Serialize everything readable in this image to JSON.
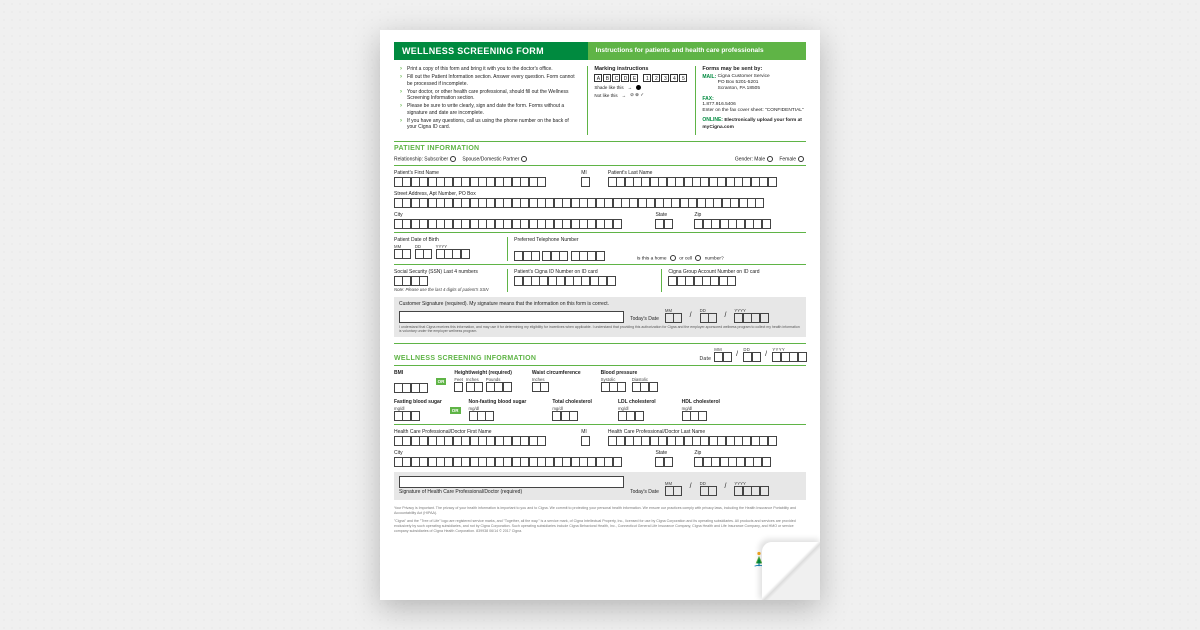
{
  "colors": {
    "green_dark": "#008a3f",
    "green_light": "#5fb446",
    "grey_bg": "#e7e7e7"
  },
  "header": {
    "title": "WELLNESS SCREENING FORM",
    "subtitle": "Instructions for patients and health care professionals"
  },
  "instructions": [
    "Print a copy of this form and bring it with you to the doctor's office.",
    "Fill out the Patient Information section. Answer every question. Form cannot be processed if incomplete.",
    "Your doctor, or other health care professional, should fill out the Wellness Screening Information section.",
    "Please be sure to write clearly, sign and date the form. Forms without a signature and date are incomplete.",
    "If you have any questions, call us using the phone number on the back of your Cigna ID card."
  ],
  "marking": {
    "title": "Marking instructions",
    "letters": [
      "A",
      "B",
      "C",
      "D",
      "E"
    ],
    "numbers": [
      "1",
      "2",
      "3",
      "4",
      "5"
    ],
    "shade_ok": "Shade like this",
    "shade_bad": "Not like this"
  },
  "send": {
    "title": "Forms may be sent by:",
    "mail_label": "MAIL:",
    "mail_text": "Cigna Customer Service\nPO Box 5201-5201\nScranton, PA 18505",
    "fax_label": "FAX:",
    "fax_text": "1.877.916.5406\nEnter on the fax cover sheet: \"CONFIDENTIAL\"",
    "online_label": "ONLINE:",
    "online_text": "Electronically upload your form at myCigna.com"
  },
  "patient": {
    "section": "PATIENT INFORMATION",
    "relationship": "Relationship:",
    "subscriber": "Subscriber",
    "spouse": "Spouse/Domestic Partner",
    "gender": "Gender:",
    "male": "Male",
    "female": "Female",
    "first_name": "Patient's First Name",
    "mi": "MI",
    "last_name": "Patient's Last Name",
    "street": "Street Address, Apt Number, PO Box",
    "city": "City",
    "state": "State",
    "zip": "Zip",
    "dob": "Patient Date of Birth",
    "mm": "MM",
    "dd": "DD",
    "yyyy": "YYYY",
    "phone": "Preferred Telephone Number",
    "phone_q": "Is this a home       or cell       number?",
    "ssn": "Social Security (SSN) Last 4 numbers",
    "ssn_note": "Note: Please use the last 4 digits of patient's SSN",
    "cigna_id": "Patient's Cigna ID Number on ID card",
    "group": "Cigna Group Account Number on ID card",
    "sig_label": "Customer Signature (required). My signature means that the information on this form is correct.",
    "today": "Today's Date",
    "sig_disclaimer": "I understand that Cigna receives this information, and may use it for determining my eligibility for incentives when applicable. I understand that providing this authorization for Cigna and the employer-sponsored wellness program to collect my health information is voluntary under the employer wellness program."
  },
  "wellness": {
    "section": "WELLNESS SCREENING INFORMATION",
    "date": "Date",
    "bmi": "BMI",
    "hw": "Height/weight (required)",
    "feet": "Feet",
    "inches": "Inches",
    "pounds": "Pounds",
    "waist": "Waist circumference",
    "waist_u": "Inches",
    "bp": "Blood pressure",
    "sys": "Systolic",
    "dia": "Diastolic",
    "fbs": "Fasting blood sugar",
    "nfbs": "Non-fasting blood sugar",
    "tc": "Total cholesterol",
    "ldl": "LDL cholesterol",
    "hdl": "HDL cholesterol",
    "mgdl": "mg/dl",
    "hcp_first": "Health Care Professional/Doctor First Name",
    "hcp_last": "Health Care Professional/Doctor Last Name",
    "hcp_sig": "Signature of Health Care Professional/Doctor (required)",
    "or": "OR"
  },
  "footer": {
    "p1": "Your Privacy is Important. The privacy of your health information is important to you and to Cigna. We commit to protecting your personal health information. We ensure our practices comply with privacy laws, including the Health Insurance Portability and Accountability Act (HIPAA).",
    "p2": "\"Cigna\" and the \"Tree of Life\" logo are registered service marks, and \"Together, all the way.\" is a service mark, of Cigna Intellectual Property, Inc., licensed for use by Cigna Corporation and its operating subsidiaries. All products and services are provided exclusively by such operating subsidiaries, and not by Cigna Corporation. Such operating subsidiaries include Cigna Behavioral Health, Inc., Connecticut General Life Insurance Company, Cigna Health and Life Insurance Company, and HMO or service company subsidiaries of Cigna Health Corporation. 839938  06/14   © 2017 Cigna."
  }
}
